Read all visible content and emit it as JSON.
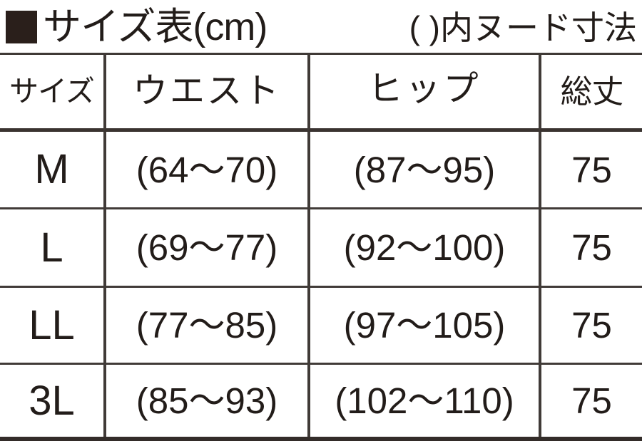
{
  "header": {
    "bullet": "■",
    "title": "サイズ表(cm)",
    "note": "( )内ヌード寸法"
  },
  "table": {
    "headers": [
      "サイズ",
      "ウエスト",
      "ヒップ",
      "総丈"
    ],
    "rows": [
      [
        "M",
        "(64〜70)",
        "(87〜95)",
        "75"
      ],
      [
        "L",
        "(69〜77)",
        "(92〜100)",
        "75"
      ],
      [
        "LL",
        "(77〜85)",
        "(97〜105)",
        "75"
      ],
      [
        "3L",
        "(85〜93)",
        "(102〜110)",
        "75"
      ]
    ]
  },
  "colors": {
    "text": "#221c19",
    "line": "#403a37",
    "bullet": "#2a1f1b",
    "background": "#ffffff"
  }
}
